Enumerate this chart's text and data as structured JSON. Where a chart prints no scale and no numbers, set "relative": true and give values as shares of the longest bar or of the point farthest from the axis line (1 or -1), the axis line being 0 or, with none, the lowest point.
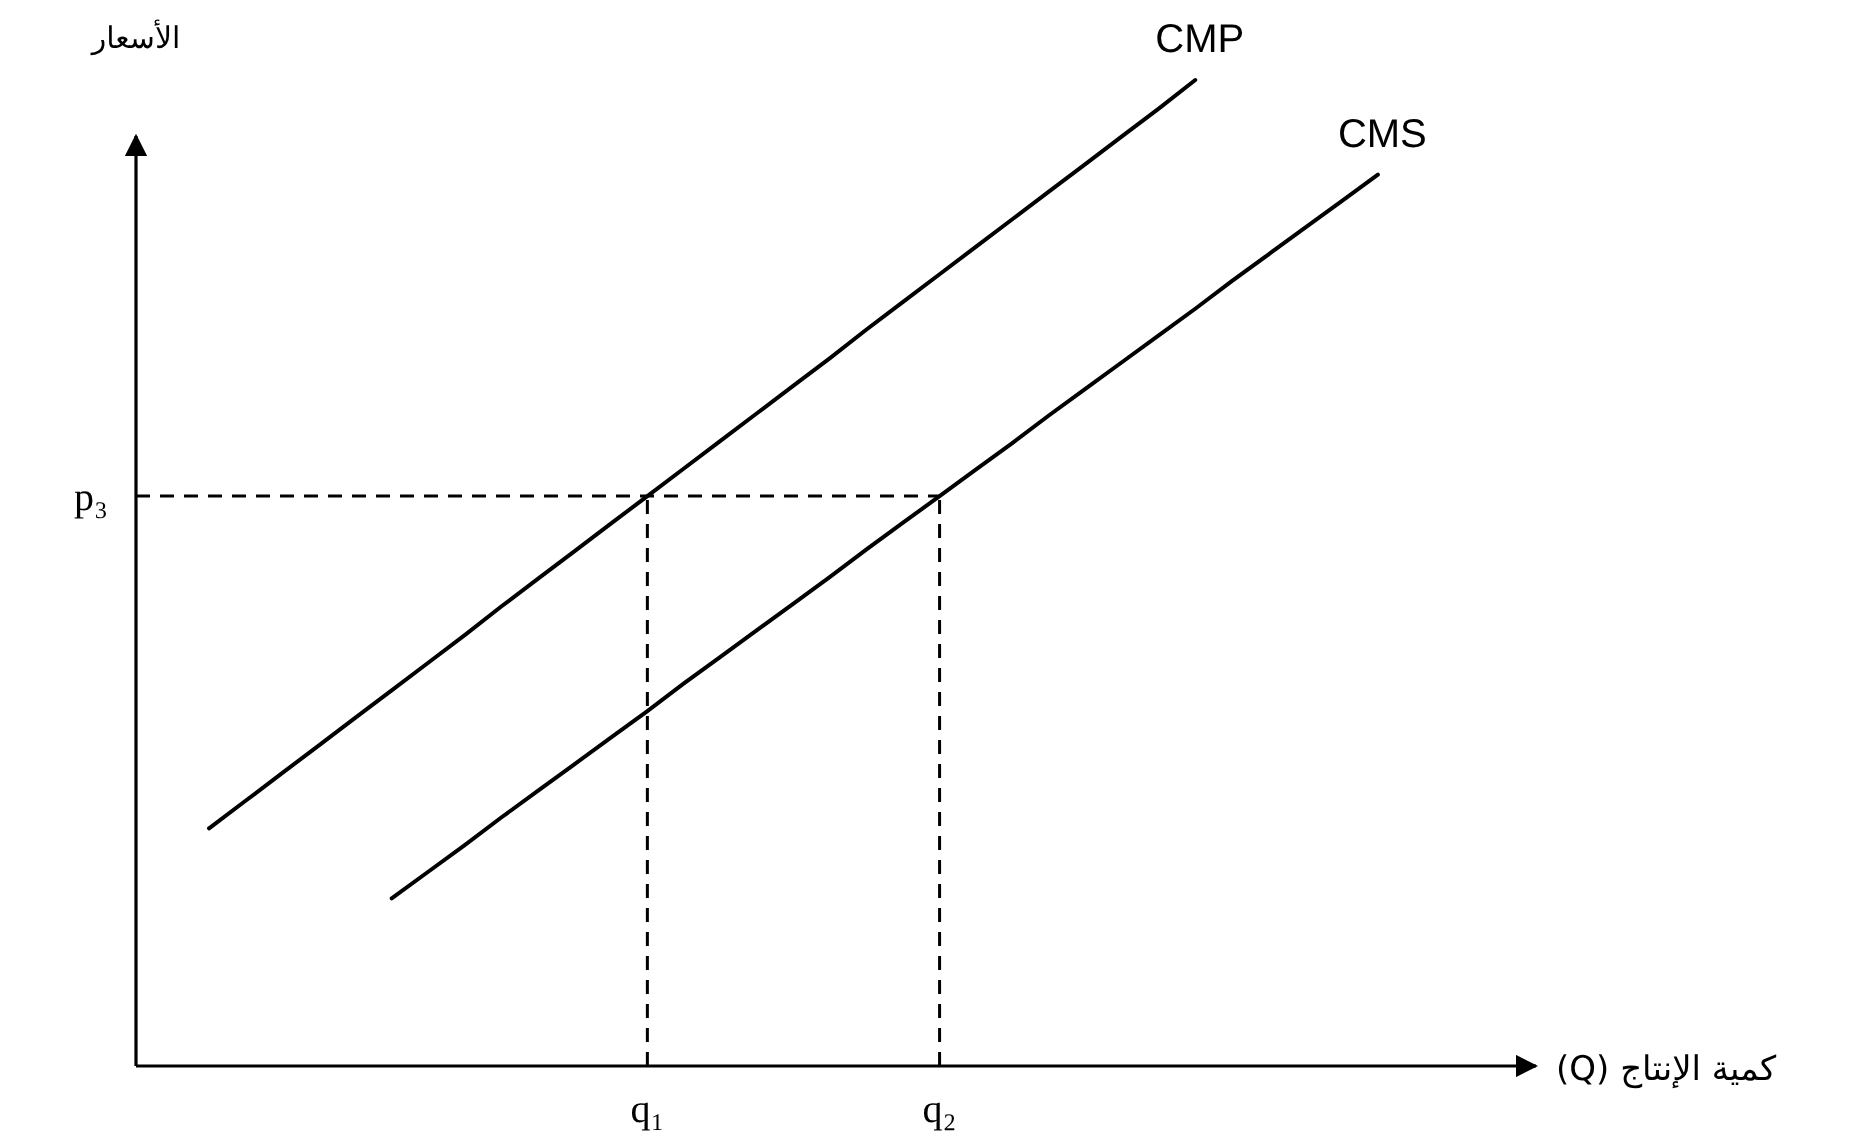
{
  "chart_data": {
    "type": "line",
    "relative": true,
    "xlabel": "كمية الإنتاج (Q)",
    "ylabel": "الأسعار",
    "grid": false,
    "legend": false,
    "marker": "none",
    "categories": [
      null,
      null,
      null,
      null,
      null,
      null,
      null,
      null,
      null,
      null,
      null,
      null,
      null,
      null,
      "q₁",
      null,
      null,
      null,
      null,
      null,
      null,
      null,
      "q₂",
      null,
      null,
      null,
      null,
      null,
      null,
      null,
      null,
      null,
      null,
      null,
      null,
      null,
      null,
      null,
      null
    ],
    "ref_lines": [
      {
        "axis": "y",
        "value": 0.578,
        "label": "p₃",
        "line_style": "dashed",
        "color": "#000000"
      },
      {
        "axis": "x",
        "value": "q₁",
        "line_style": "dashed",
        "color": "#000000"
      },
      {
        "axis": "x",
        "value": "q₂",
        "line_style": "dashed",
        "color": "#000000"
      }
    ],
    "series": [
      {
        "name": "CMP",
        "color": "#000000",
        "values": [
          null,
          null,
          0.241,
          0.269,
          0.297,
          0.325,
          0.353,
          0.381,
          0.409,
          0.437,
          0.466,
          0.494,
          0.522,
          0.55,
          0.578,
          0.606,
          0.634,
          0.662,
          0.69,
          0.718,
          0.747,
          0.775,
          0.803,
          0.831,
          0.859,
          0.887,
          0.915,
          0.943,
          0.971,
          1,
          null,
          null,
          null,
          null,
          null,
          null,
          null,
          null,
          null
        ]
      },
      {
        "name": "CMS",
        "color": "#000000",
        "values": [
          null,
          null,
          null,
          null,
          null,
          null,
          null,
          0.17,
          0.197,
          0.224,
          0.252,
          0.279,
          0.306,
          0.333,
          0.36,
          0.388,
          0.415,
          0.442,
          0.469,
          0.496,
          0.524,
          0.551,
          0.578,
          0.605,
          0.632,
          0.66,
          0.687,
          0.714,
          0.741,
          0.768,
          0.796,
          0.823,
          0.85,
          0.877,
          0.904,
          null,
          null,
          null,
          null
        ]
      }
    ]
  }
}
